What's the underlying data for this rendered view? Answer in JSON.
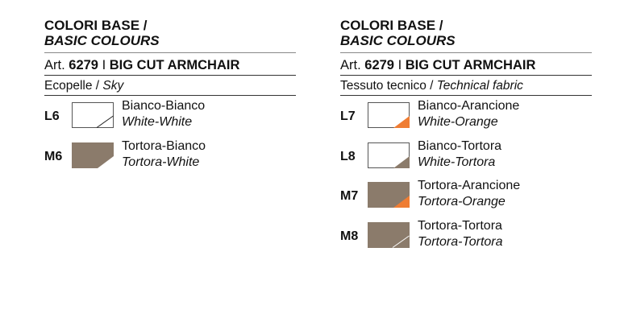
{
  "colors": {
    "tortora": "#8b7b6b",
    "white": "#ffffff",
    "orange": "#ef7d33"
  },
  "columns": [
    {
      "title_it": "COLORI BASE /",
      "title_en": "BASIC COLOURS",
      "art_prefix": "Art.",
      "art_number": "6279",
      "art_sep": "I",
      "art_name": "BIG CUT ARMCHAIR",
      "material_it": "Ecopelle /",
      "material_en": "Sky",
      "items": [
        {
          "code": "L6",
          "name_it": "Bianco-Bianco",
          "name_en": "White-White",
          "main": "white",
          "corner": "line"
        },
        {
          "code": "M6",
          "name_it": "Tortora-Bianco",
          "name_en": "Tortora-White",
          "main": "tortora",
          "corner": "white"
        }
      ]
    },
    {
      "title_it": "COLORI BASE /",
      "title_en": "BASIC COLOURS",
      "art_prefix": "Art.",
      "art_number": "6279",
      "art_sep": "I",
      "art_name": "BIG CUT ARMCHAIR",
      "material_it": "Tessuto tecnico /",
      "material_en": "Technical fabric",
      "items": [
        {
          "code": "L7",
          "name_it": "Bianco-Arancione",
          "name_en": "White-Orange",
          "main": "white",
          "corner": "orange"
        },
        {
          "code": "L8",
          "name_it": "Bianco-Tortora",
          "name_en": "White-Tortora",
          "main": "white",
          "corner": "tortora"
        },
        {
          "code": "M7",
          "name_it": "Tortora-Arancione",
          "name_en": "Tortora-Orange",
          "main": "tortora",
          "corner": "orange"
        },
        {
          "code": "M8",
          "name_it": "Tortora-Tortora",
          "name_en": "Tortora-Tortora",
          "main": "tortora",
          "corner": "line"
        }
      ]
    }
  ]
}
